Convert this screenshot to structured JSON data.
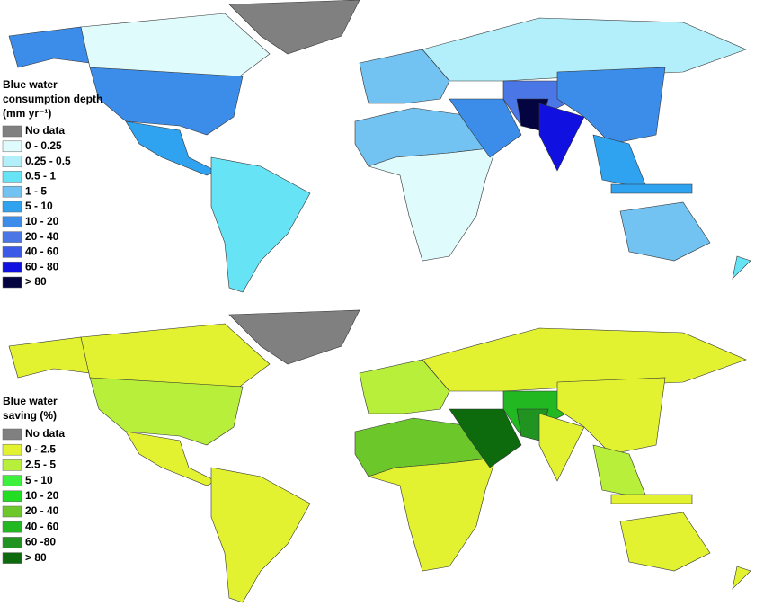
{
  "maps": [
    {
      "legend": {
        "title": [
          "Blue water",
          "consumption depth",
          "(mm yr⁻¹)"
        ],
        "items": [
          {
            "label": "No data",
            "color": "#808080"
          },
          {
            "label": "0 - 0.25",
            "color": "#e0fbfc"
          },
          {
            "label": "0.25 - 0.5",
            "color": "#b3effa"
          },
          {
            "label": "0.5 - 1",
            "color": "#66e3f5"
          },
          {
            "label": "1 - 5",
            "color": "#72c2f2"
          },
          {
            "label": "5 - 10",
            "color": "#2fa2f0"
          },
          {
            "label": "10 - 20",
            "color": "#3b8de9"
          },
          {
            "label": "20 - 40",
            "color": "#4b76e6"
          },
          {
            "label": "40 - 60",
            "color": "#3c5ae8"
          },
          {
            "label": "60 - 80",
            "color": "#1010e0"
          },
          {
            "label": "> 80",
            "color": "#040440"
          }
        ]
      }
    },
    {
      "legend": {
        "title": [
          "Blue water",
          "saving (%)"
        ],
        "items": [
          {
            "label": "No data",
            "color": "#808080"
          },
          {
            "label": "0 - 2.5",
            "color": "#e2f230"
          },
          {
            "label": "2.5 - 5",
            "color": "#b7ef3a"
          },
          {
            "label": "5 - 10",
            "color": "#3cf03c"
          },
          {
            "label": "10 - 20",
            "color": "#22dd22"
          },
          {
            "label": "20 - 40",
            "color": "#6cc82a"
          },
          {
            "label": "40 - 60",
            "color": "#22b822"
          },
          {
            "label": "60 -80",
            "color": "#219321"
          },
          {
            "label": "> 80",
            "color": "#0d6b0d"
          }
        ]
      }
    }
  ]
}
